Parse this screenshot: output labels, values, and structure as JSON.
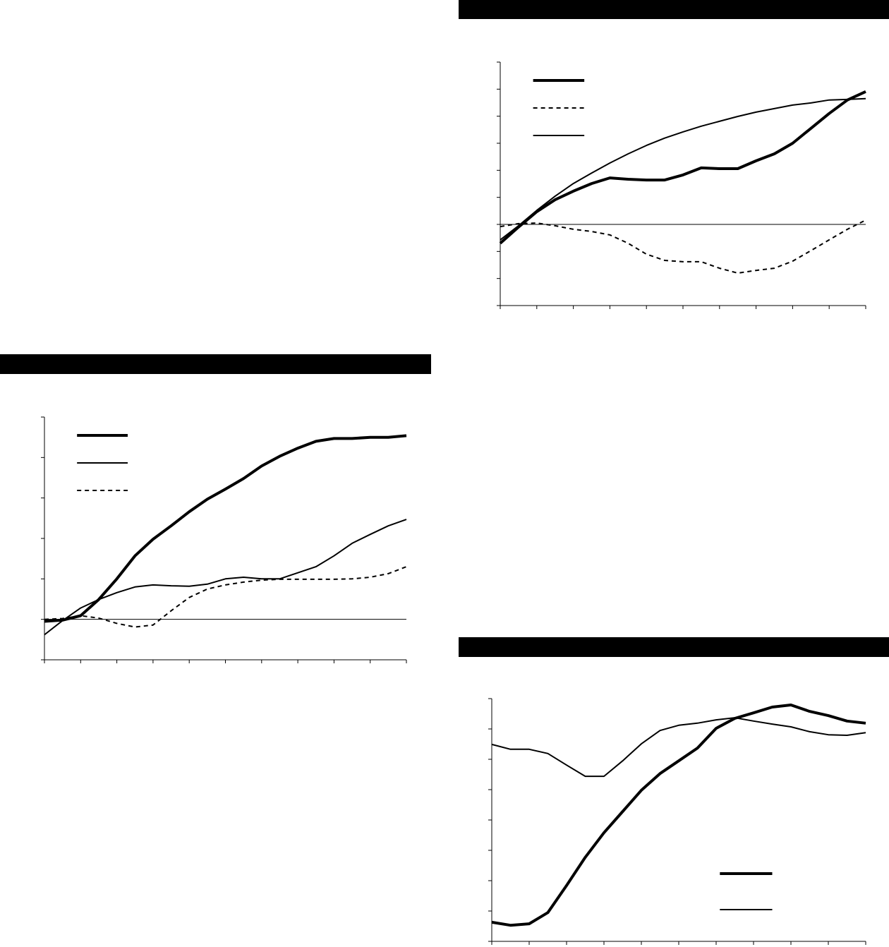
{
  "chart_data": [
    {
      "type": "line",
      "legend": "top-left",
      "grid": false,
      "zero_line": true,
      "x": [
        0,
        0.5,
        1,
        1.5,
        2,
        2.5,
        3,
        3.5,
        4,
        4.5,
        5,
        5.5,
        6,
        6.5,
        7,
        7.5,
        8,
        8.5,
        9,
        9.5,
        10
      ],
      "xlim": [
        0,
        10
      ],
      "xticks": [
        0,
        1,
        2,
        3,
        4,
        5,
        6,
        7,
        8,
        9,
        10
      ],
      "ylim": [
        -1,
        5
      ],
      "yticks": [
        -1,
        0,
        1,
        2,
        3,
        4,
        5
      ],
      "series": [
        {
          "color": "#000000",
          "line_width": 4,
          "dash": false,
          "values": [
            -0.05,
            -0.02,
            0.09,
            0.49,
            1.0,
            1.57,
            1.98,
            2.31,
            2.66,
            2.97,
            3.22,
            3.48,
            3.79,
            4.03,
            4.23,
            4.4,
            4.47,
            4.47,
            4.5,
            4.5,
            4.54
          ]
        },
        {
          "color": "#000000",
          "line_width": 2,
          "dash": false,
          "values": [
            -0.38,
            -0.03,
            0.28,
            0.49,
            0.66,
            0.8,
            0.85,
            0.83,
            0.82,
            0.87,
            1.0,
            1.04,
            1.0,
            1.0,
            1.15,
            1.3,
            1.57,
            1.88,
            2.1,
            2.31,
            2.47
          ]
        },
        {
          "color": "#000000",
          "line_width": 2,
          "dash": true,
          "values": [
            0,
            0.02,
            0.09,
            0.03,
            -0.1,
            -0.19,
            -0.14,
            0.21,
            0.54,
            0.75,
            0.85,
            0.92,
            0.97,
            0.99,
            0.99,
            0.99,
            0.99,
            1.0,
            1.04,
            1.13,
            1.3
          ]
        }
      ]
    },
    {
      "type": "line",
      "legend": "top-left",
      "grid": false,
      "zero_line": true,
      "x": [
        0,
        0.5,
        1,
        1.5,
        2,
        2.5,
        3,
        3.5,
        4,
        4.5,
        5,
        5.5,
        6,
        6.5,
        7,
        7.5,
        8,
        8.5,
        9,
        9.5,
        10
      ],
      "xlim": [
        0,
        10
      ],
      "xticks": [
        0,
        1,
        2,
        3,
        4,
        5,
        6,
        7,
        8,
        9,
        10
      ],
      "ylim": [
        -3,
        6
      ],
      "yticks": [
        -3,
        -2,
        -1,
        0,
        1,
        2,
        3,
        4,
        5,
        6
      ],
      "series": [
        {
          "color": "#000000",
          "line_width": 4,
          "dash": false,
          "values": [
            -0.7,
            -0.1,
            0.47,
            0.91,
            1.23,
            1.51,
            1.72,
            1.67,
            1.64,
            1.64,
            1.83,
            2.09,
            2.06,
            2.06,
            2.35,
            2.61,
            3.0,
            3.55,
            4.1,
            4.6,
            4.91
          ]
        },
        {
          "color": "#000000",
          "line_width": 2,
          "dash": true,
          "values": [
            -0.08,
            0.03,
            0.05,
            -0.05,
            -0.18,
            -0.26,
            -0.39,
            -0.7,
            -1.1,
            -1.33,
            -1.38,
            -1.38,
            -1.62,
            -1.8,
            -1.7,
            -1.62,
            -1.36,
            -0.97,
            -0.57,
            -0.18,
            0.16
          ]
        },
        {
          "color": "#000000",
          "line_width": 2,
          "dash": false,
          "values": [
            -0.57,
            -0.05,
            0.52,
            1.04,
            1.51,
            1.9,
            2.27,
            2.61,
            2.92,
            3.19,
            3.42,
            3.63,
            3.81,
            3.99,
            4.15,
            4.28,
            4.41,
            4.49,
            4.6,
            4.62,
            4.65
          ]
        }
      ]
    },
    {
      "type": "line",
      "legend": "bottom-right",
      "grid": false,
      "zero_line": false,
      "x": [
        0,
        0.5,
        1,
        1.5,
        2,
        2.5,
        3,
        3.5,
        4,
        4.5,
        5,
        5.5,
        6,
        6.5,
        7,
        7.5,
        8,
        8.5,
        9,
        9.5,
        10
      ],
      "xlim": [
        0,
        10
      ],
      "xticks": [
        0,
        1,
        2,
        3,
        4,
        5,
        6,
        7,
        8,
        9,
        10
      ],
      "ylim": [
        0,
        8
      ],
      "yticks": [
        0,
        1,
        2,
        3,
        4,
        5,
        6,
        7,
        8
      ],
      "series": [
        {
          "color": "#000000",
          "line_width": 4,
          "dash": false,
          "values": [
            0.63,
            0.53,
            0.58,
            0.95,
            1.84,
            2.77,
            3.58,
            4.28,
            4.98,
            5.53,
            5.95,
            6.37,
            7.02,
            7.35,
            7.53,
            7.72,
            7.79,
            7.58,
            7.44,
            7.26,
            7.19
          ]
        },
        {
          "color": "#000000",
          "line_width": 2,
          "dash": false,
          "values": [
            6.49,
            6.33,
            6.33,
            6.19,
            5.81,
            5.44,
            5.44,
            5.95,
            6.51,
            6.95,
            7.12,
            7.19,
            7.3,
            7.37,
            7.26,
            7.16,
            7.07,
            6.91,
            6.81,
            6.79,
            6.88
          ]
        }
      ]
    }
  ]
}
